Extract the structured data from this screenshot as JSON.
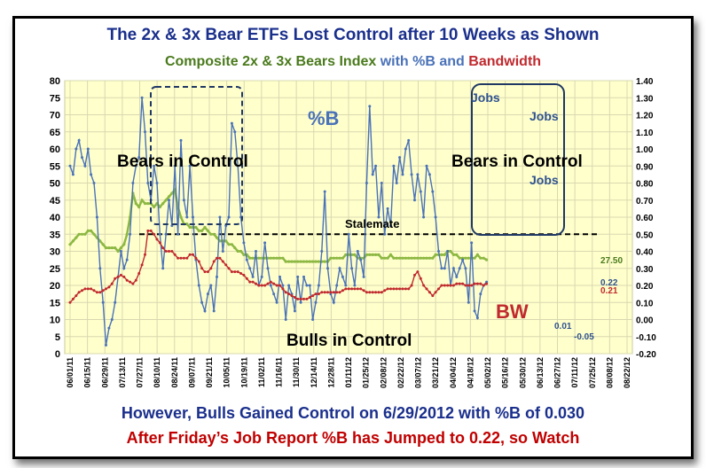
{
  "title": "The 2x & 3x Bear ETFs Lost Control after 10 Weeks as Shown",
  "subtitle": {
    "part1": "Composite 2x & 3x Bears Index",
    "part2": " with %B",
    "part3": " and ",
    "part4": "Bandwidth"
  },
  "footer1": "However, Bulls Gained Control on 6/29/2012 with %B of 0.030",
  "footer2": "After Friday’s Job Report %B has Jumped to 0.22, so Watch",
  "colors": {
    "index": "#8db843",
    "pctb": "#4a72b8",
    "bw": "#c0292e",
    "plot_bg": "#ffffcc",
    "title": "#1a2f8c"
  },
  "annotations": {
    "bears_left": "Bears in Control",
    "bears_right": "Bears in Control",
    "bulls": "Bulls in Control",
    "stalemate": "Stalemate",
    "pctb": "%B",
    "bw": "BW",
    "jobs1": "Jobs",
    "jobs2": "Jobs",
    "jobs3": "Jobs",
    "val_index": "27.50",
    "val_pctb": "0.22",
    "val_bw": "0.21",
    "val_001": "0.01",
    "val_neg005": "-0.05"
  },
  "chart_data": {
    "type": "line",
    "y_left": {
      "min": 0,
      "max": 80,
      "ticks": [
        "0",
        "5",
        "10",
        "15",
        "20",
        "25",
        "30",
        "35",
        "40",
        "45",
        "50",
        "55",
        "60",
        "65",
        "70",
        "75",
        "80"
      ]
    },
    "y_right": {
      "min": -0.2,
      "max": 1.4,
      "ticks": [
        "-0.20",
        "-0.10",
        "0.00",
        "0.10",
        "0.20",
        "0.30",
        "0.40",
        "0.50",
        "0.60",
        "0.70",
        "0.80",
        "0.90",
        "1.00",
        "1.10",
        "1.20",
        "1.30",
        "1.40"
      ]
    },
    "x_labels": [
      "06/01/11",
      "06/15/11",
      "06/29/11",
      "07/13/11",
      "07/27/11",
      "08/10/11",
      "08/24/11",
      "09/07/11",
      "09/21/11",
      "10/05/11",
      "10/19/11",
      "11/02/11",
      "11/16/11",
      "11/30/11",
      "12/14/11",
      "12/28/11",
      "01/11/12",
      "01/25/12",
      "02/08/12",
      "02/22/12",
      "03/07/12",
      "03/21/12",
      "04/04/12",
      "04/18/12",
      "05/02/12",
      "05/16/12",
      "05/30/12",
      "06/13/12",
      "06/27/12",
      "07/11/12",
      "07/25/12",
      "08/08/12",
      "08/22/12"
    ],
    "stalemate_level": 35,
    "series": [
      {
        "name": "Composite 2x & 3x Bears Index",
        "axis": "left",
        "color": "#8db843",
        "values": [
          32,
          33,
          34,
          35,
          35,
          35,
          36,
          36,
          35,
          34,
          33,
          32,
          31,
          31,
          31,
          31,
          30,
          31,
          32,
          35,
          40,
          47,
          44,
          43,
          45,
          44,
          44,
          44,
          43,
          44,
          43,
          44,
          45,
          46,
          47,
          48,
          43,
          40,
          38,
          38,
          37,
          37,
          37,
          36,
          36,
          37,
          36,
          35,
          35,
          34,
          33,
          33,
          33,
          32,
          32,
          31,
          30,
          30,
          29,
          29,
          28,
          28,
          28,
          28,
          28,
          28,
          28,
          28,
          28,
          28,
          28,
          28,
          27,
          27,
          27,
          27,
          27,
          27,
          27,
          27,
          27,
          27,
          27,
          27,
          27,
          27,
          27,
          28,
          28,
          28,
          28,
          28,
          29,
          29,
          29,
          29,
          28,
          28,
          28,
          29,
          29,
          29,
          29,
          29,
          28,
          28,
          28,
          29,
          28,
          28,
          28,
          28,
          28,
          28,
          28,
          28,
          28,
          28,
          28,
          28,
          28,
          28,
          29,
          29,
          29,
          29,
          30,
          30,
          29,
          29,
          28,
          28,
          28,
          28,
          28,
          28,
          29,
          28,
          28,
          27.5
        ]
      },
      {
        "name": "%B",
        "axis": "right",
        "color": "#4a72b8",
        "values": [
          0.9,
          0.85,
          1.0,
          1.05,
          0.95,
          0.9,
          1.0,
          0.85,
          0.8,
          0.6,
          0.3,
          0.1,
          -0.15,
          -0.05,
          0.0,
          0.1,
          0.25,
          0.4,
          0.3,
          0.35,
          0.5,
          0.8,
          0.9,
          0.95,
          1.3,
          1.1,
          0.8,
          0.7,
          0.9,
          0.8,
          0.5,
          0.3,
          0.5,
          0.7,
          0.55,
          0.9,
          0.5,
          1.05,
          0.7,
          0.6,
          0.9,
          0.6,
          0.35,
          0.2,
          0.1,
          0.05,
          0.15,
          0.2,
          0.05,
          0.25,
          0.6,
          0.4,
          0.55,
          0.6,
          1.15,
          1.1,
          0.9,
          0.6,
          0.45,
          0.35,
          0.3,
          0.25,
          0.4,
          0.2,
          0.25,
          0.45,
          0.3,
          0.2,
          0.15,
          0.1,
          0.25,
          0.2,
          0.0,
          0.2,
          0.15,
          0.05,
          0.25,
          0.1,
          0.25,
          0.2,
          0.2,
          0.0,
          0.1,
          0.2,
          0.4,
          0.75,
          0.3,
          0.15,
          0.1,
          0.2,
          0.3,
          0.25,
          0.2,
          0.5,
          0.3,
          0.2,
          0.4,
          0.35,
          0.25,
          0.8,
          1.25,
          0.85,
          0.9,
          0.6,
          0.8,
          0.5,
          0.65,
          0.55,
          0.9,
          0.8,
          0.95,
          0.85,
          1.0,
          1.05,
          0.85,
          0.7,
          0.85,
          0.75,
          0.6,
          0.9,
          0.85,
          0.75,
          0.6,
          0.4,
          0.3,
          0.3,
          0.4,
          0.2,
          0.3,
          0.25,
          0.3,
          0.35,
          0.3,
          0.1,
          0.45,
          0.05,
          0.01,
          0.15,
          0.2,
          0.22
        ]
      },
      {
        "name": "Bandwidth",
        "axis": "right",
        "color": "#c0292e",
        "values": [
          0.1,
          0.12,
          0.14,
          0.16,
          0.17,
          0.18,
          0.18,
          0.18,
          0.17,
          0.16,
          0.16,
          0.17,
          0.18,
          0.19,
          0.21,
          0.24,
          0.25,
          0.26,
          0.25,
          0.23,
          0.22,
          0.21,
          0.23,
          0.27,
          0.32,
          0.38,
          0.52,
          0.52,
          0.5,
          0.47,
          0.45,
          0.42,
          0.4,
          0.4,
          0.4,
          0.38,
          0.36,
          0.36,
          0.36,
          0.36,
          0.38,
          0.38,
          0.36,
          0.34,
          0.3,
          0.28,
          0.28,
          0.3,
          0.34,
          0.36,
          0.36,
          0.34,
          0.32,
          0.3,
          0.28,
          0.28,
          0.28,
          0.27,
          0.26,
          0.24,
          0.22,
          0.22,
          0.21,
          0.2,
          0.2,
          0.2,
          0.21,
          0.22,
          0.21,
          0.2,
          0.2,
          0.18,
          0.16,
          0.15,
          0.14,
          0.13,
          0.12,
          0.12,
          0.12,
          0.12,
          0.13,
          0.14,
          0.15,
          0.15,
          0.16,
          0.16,
          0.16,
          0.16,
          0.16,
          0.16,
          0.16,
          0.17,
          0.18,
          0.18,
          0.18,
          0.18,
          0.18,
          0.18,
          0.17,
          0.16,
          0.16,
          0.16,
          0.16,
          0.16,
          0.16,
          0.17,
          0.18,
          0.18,
          0.18,
          0.18,
          0.18,
          0.18,
          0.18,
          0.18,
          0.2,
          0.26,
          0.28,
          0.24,
          0.2,
          0.18,
          0.16,
          0.14,
          0.16,
          0.18,
          0.2,
          0.2,
          0.2,
          0.2,
          0.2,
          0.21,
          0.21,
          0.21,
          0.2,
          0.2,
          0.2,
          0.21,
          0.21,
          0.21,
          0.2,
          0.21
        ]
      }
    ]
  }
}
